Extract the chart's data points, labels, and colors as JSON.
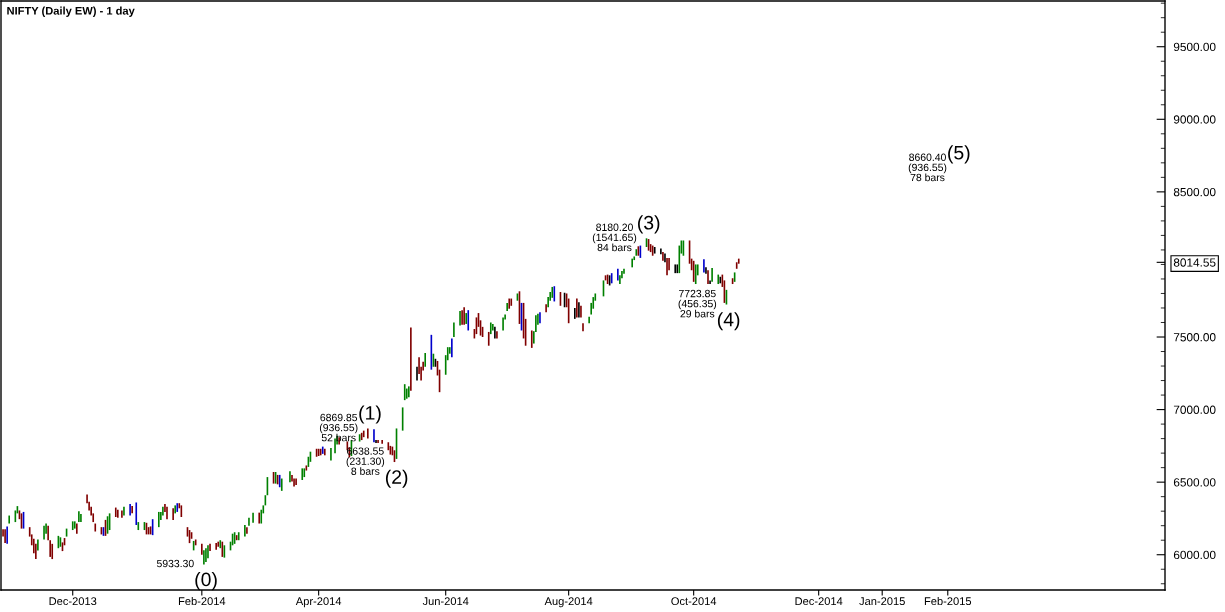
{
  "chart_data": {
    "type": "bar",
    "title": "NIFTY (Daily EW) - 1 day",
    "x": [
      "2013-10-29",
      "2013-10-30",
      "2013-10-31",
      "2013-11-01",
      "2013-11-04",
      "2013-11-05",
      "2013-11-06",
      "2013-11-07",
      "2013-11-08",
      "2013-11-11",
      "2013-11-12",
      "2013-11-13",
      "2013-11-14",
      "2013-11-15",
      "2013-11-18",
      "2013-11-19",
      "2013-11-20",
      "2013-11-21",
      "2013-11-22",
      "2013-11-25",
      "2013-11-26",
      "2013-11-27",
      "2013-11-28",
      "2013-11-29",
      "2013-12-02",
      "2013-12-03",
      "2013-12-04",
      "2013-12-05",
      "2013-12-06",
      "2013-12-09",
      "2013-12-10",
      "2013-12-11",
      "2013-12-12",
      "2013-12-13",
      "2013-12-16",
      "2013-12-17",
      "2013-12-18",
      "2013-12-19",
      "2013-12-20",
      "2013-12-23",
      "2013-12-24",
      "2013-12-26",
      "2013-12-27",
      "2013-12-30",
      "2013-12-31",
      "2014-01-02",
      "2014-01-03",
      "2014-01-06",
      "2014-01-07",
      "2014-01-08",
      "2014-01-09",
      "2014-01-10",
      "2014-01-13",
      "2014-01-14",
      "2014-01-15",
      "2014-01-16",
      "2014-01-17",
      "2014-01-20",
      "2014-01-21",
      "2014-01-22",
      "2014-01-23",
      "2014-01-24",
      "2014-01-27",
      "2014-01-28",
      "2014-01-29",
      "2014-01-30",
      "2014-01-31",
      "2014-02-03",
      "2014-02-04",
      "2014-02-05",
      "2014-02-06",
      "2014-02-07",
      "2014-02-10",
      "2014-02-11",
      "2014-02-12",
      "2014-02-13",
      "2014-02-14",
      "2014-02-17",
      "2014-02-18",
      "2014-02-19",
      "2014-02-20",
      "2014-02-21",
      "2014-02-24",
      "2014-02-25",
      "2014-02-26",
      "2014-02-28",
      "2014-03-03",
      "2014-03-04",
      "2014-03-05",
      "2014-03-06",
      "2014-03-07",
      "2014-03-10",
      "2014-03-11",
      "2014-03-12",
      "2014-03-13",
      "2014-03-14",
      "2014-03-18",
      "2014-03-19",
      "2014-03-20",
      "2014-03-21",
      "2014-03-24",
      "2014-03-25",
      "2014-03-26",
      "2014-03-27",
      "2014-03-28",
      "2014-03-31",
      "2014-04-01",
      "2014-04-02",
      "2014-04-03",
      "2014-04-04",
      "2014-04-07",
      "2014-04-09",
      "2014-04-10",
      "2014-04-11",
      "2014-04-15",
      "2014-04-16",
      "2014-04-17",
      "2014-04-21",
      "2014-04-22",
      "2014-04-23",
      "2014-04-25",
      "2014-04-28",
      "2014-04-29",
      "2014-04-30",
      "2014-05-02",
      "2014-05-05",
      "2014-05-06",
      "2014-05-07",
      "2014-05-08",
      "2014-05-09",
      "2014-05-12",
      "2014-05-13",
      "2014-05-14",
      "2014-05-15",
      "2014-05-16",
      "2014-05-19",
      "2014-05-20",
      "2014-05-21",
      "2014-05-22",
      "2014-05-23",
      "2014-05-26",
      "2014-05-27",
      "2014-05-28",
      "2014-05-29",
      "2014-05-30",
      "2014-06-02",
      "2014-06-03",
      "2014-06-04",
      "2014-06-05",
      "2014-06-06",
      "2014-06-09",
      "2014-06-10",
      "2014-06-11",
      "2014-06-12",
      "2014-06-13",
      "2014-06-16",
      "2014-06-17",
      "2014-06-18",
      "2014-06-19",
      "2014-06-20",
      "2014-06-23",
      "2014-06-24",
      "2014-06-25",
      "2014-06-26",
      "2014-06-27",
      "2014-06-30",
      "2014-07-01",
      "2014-07-02",
      "2014-07-03",
      "2014-07-04",
      "2014-07-07",
      "2014-07-08",
      "2014-07-09",
      "2014-07-10",
      "2014-07-11",
      "2014-07-14",
      "2014-07-15",
      "2014-07-16",
      "2014-07-17",
      "2014-07-18",
      "2014-07-21",
      "2014-07-22",
      "2014-07-23",
      "2014-07-24",
      "2014-07-25",
      "2014-07-28",
      "2014-07-30",
      "2014-07-31",
      "2014-08-01",
      "2014-08-04",
      "2014-08-05",
      "2014-08-06",
      "2014-08-07",
      "2014-08-08",
      "2014-08-11",
      "2014-08-12",
      "2014-08-13",
      "2014-08-14",
      "2014-08-18",
      "2014-08-19",
      "2014-08-20",
      "2014-08-21",
      "2014-08-22",
      "2014-08-25",
      "2014-08-26",
      "2014-08-27",
      "2014-08-28",
      "2014-09-01",
      "2014-09-02",
      "2014-09-03",
      "2014-09-04",
      "2014-09-05",
      "2014-09-08",
      "2014-09-09",
      "2014-09-10",
      "2014-09-11",
      "2014-09-12",
      "2014-09-15",
      "2014-09-16",
      "2014-09-17",
      "2014-09-18",
      "2014-09-19",
      "2014-09-22",
      "2014-09-23",
      "2014-09-24",
      "2014-09-25",
      "2014-09-26",
      "2014-09-29",
      "2014-09-30",
      "2014-10-01",
      "2014-10-02",
      "2014-10-03",
      "2014-10-06",
      "2014-10-07",
      "2014-10-08",
      "2014-10-09",
      "2014-10-10",
      "2014-10-13",
      "2014-10-14",
      "2014-10-15",
      "2014-10-16",
      "2014-10-17",
      "2014-10-20",
      "2014-10-21",
      "2014-10-22",
      "2014-10-23"
    ],
    "base": [
      6125,
      6080,
      6075,
      6215,
      6225,
      6285,
      6245,
      6180,
      6180,
      6125,
      6065,
      6010,
      5970,
      6030,
      6105,
      6145,
      6100,
      5985,
      5970,
      6045,
      6055,
      6025,
      6065,
      6125,
      6170,
      6180,
      6145,
      6225,
      6225,
      6355,
      6305,
      6270,
      6225,
      6160,
      6140,
      6130,
      6130,
      6145,
      6170,
      6260,
      6255,
      6255,
      6270,
      6270,
      6285,
      6205,
      6170,
      6170,
      6140,
      6140,
      6140,
      6135,
      6190,
      6240,
      6270,
      6295,
      6245,
      6240,
      6285,
      6295,
      6320,
      6260,
      6125,
      6080,
      6110,
      6030,
      6065,
      6000,
      5933.3,
      5950,
      5975,
      6025,
      6035,
      6055,
      6045,
      5985,
      5980,
      6030,
      6065,
      6075,
      6100,
      6100,
      6125,
      6145,
      6200,
      6220,
      6215,
      6215,
      6285,
      6340,
      6410,
      6490,
      6490,
      6485,
      6465,
      6440,
      6500,
      6505,
      6470,
      6480,
      6515,
      6535,
      6580,
      6605,
      6640,
      6675,
      6680,
      6685,
      6695,
      6685,
      6650,
      6700,
      6760,
      6760,
      6720,
      6670,
      6680,
      6780,
      6790,
      6810,
      6800,
      6775,
      6770,
      6770,
      6765,
      6720,
      6690,
      6685,
      6638.55,
      6660,
      6855,
      7065,
      7075,
      7085,
      7130,
      7200,
      7245,
      7200,
      7270,
      7295,
      7275,
      7295,
      7295,
      7235,
      7120,
      7240,
      7340,
      7385,
      7360,
      7500,
      7580,
      7585,
      7585,
      7590,
      7545,
      7490,
      7520,
      7570,
      7510,
      7500,
      7440,
      7520,
      7545,
      7490,
      7490,
      7545,
      7620,
      7680,
      7695,
      7715,
      7750,
      7590,
      7545,
      7490,
      7440,
      7425,
      7455,
      7535,
      7585,
      7595,
      7670,
      7705,
      7750,
      7770,
      7745,
      7715,
      7705,
      7705,
      7595,
      7625,
      7635,
      7635,
      7635,
      7540,
      7595,
      7655,
      7695,
      7750,
      7780,
      7890,
      7865,
      7855,
      7870,
      7890,
      7865,
      7905,
      7935,
      7980,
      8030,
      8060,
      8060,
      8045,
      8120,
      8095,
      8085,
      8060,
      8075,
      8070,
      8025,
      8015,
      7925,
      7960,
      7940,
      7940,
      7940,
      8075,
      8060,
      8005,
      7960,
      7880,
      7865,
      7925,
      7945,
      7935,
      7865,
      7865,
      7880,
      7865,
      7870,
      7845,
      7735,
      7723.85,
      7865,
      7880,
      7970,
      8005
    ],
    "values": [
      50,
      95,
      120,
      55,
      80,
      50,
      60,
      105,
      115,
      65,
      75,
      100,
      105,
      75,
      95,
      70,
      100,
      115,
      105,
      85,
      65,
      60,
      50,
      55,
      60,
      50,
      70,
      75,
      55,
      60,
      60,
      60,
      60,
      55,
      50,
      60,
      110,
      120,
      115,
      65,
      55,
      50,
      60,
      80,
      50,
      155,
      55,
      55,
      80,
      50,
      55,
      110,
      105,
      55,
      60,
      55,
      85,
      80,
      55,
      60,
      35,
      80,
      65,
      90,
      45,
      65,
      40,
      75,
      97,
      95,
      90,
      50,
      45,
      35,
      55,
      105,
      85,
      60,
      80,
      80,
      35,
      55,
      80,
      45,
      55,
      70,
      75,
      95,
      55,
      70,
      125,
      80,
      80,
      65,
      85,
      85,
      75,
      45,
      55,
      45,
      80,
      60,
      35,
      70,
      70,
      55,
      50,
      45,
      50,
      45,
      85,
      100,
      60,
      50,
      60,
      70,
      110,
      50,
      50,
      45,
      70,
      90,
      20,
      20,
      25,
      55,
      60,
      60,
      81,
      210,
      160,
      110,
      70,
      75,
      435,
      95,
      115,
      95,
      60,
      95,
      240,
      90,
      55,
      100,
      155,
      135,
      90,
      45,
      130,
      100,
      100,
      100,
      120,
      75,
      140,
      65,
      115,
      95,
      105,
      70,
      95,
      80,
      45,
      80,
      50,
      90,
      35,
      55,
      70,
      50,
      50,
      225,
      190,
      245,
      185,
      120,
      85,
      115,
      75,
      75,
      55,
      70,
      60,
      75,
      105,
      95,
      100,
      95,
      170,
      75,
      130,
      105,
      80,
      55,
      45,
      80,
      80,
      50,
      110,
      35,
      65,
      70,
      70,
      80,
      60,
      50,
      35,
      60,
      25,
      45,
      65,
      85,
      60,
      80,
      55,
      70,
      45,
      40,
      60,
      60,
      120,
      85,
      60,
      60,
      190,
      90,
      105,
      160,
      80,
      145,
      135,
      75,
      90,
      45,
      95,
      25,
      95,
      65,
      45,
      85,
      155,
      101,
      40,
      65,
      45,
      35
    ],
    "colors": [
      "#800000",
      "#800000",
      "#0000cc",
      "#008000",
      "#008000",
      "#008000",
      "#800000",
      "#800000",
      "#0000cc",
      "#800000",
      "#800000",
      "#800000",
      "#800000",
      "#008000",
      "#008000",
      "#008000",
      "#800000",
      "#800000",
      "#800000",
      "#008000",
      "#008000",
      "#800000",
      "#800000",
      "#008000",
      "#008000",
      "#008000",
      "#800000",
      "#008000",
      "#008000",
      "#800000",
      "#800000",
      "#800000",
      "#800000",
      "#800000",
      "#800000",
      "#0000cc",
      "#800000",
      "#008000",
      "#008000",
      "#800000",
      "#800000",
      "#800000",
      "#008000",
      "#0000cc",
      "#800000",
      "#0000cc",
      "#008000",
      "#008000",
      "#800000",
      "#800000",
      "#800000",
      "#0000cc",
      "#008000",
      "#008000",
      "#008000",
      "#800000",
      "#800000",
      "#800000",
      "#008000",
      "#0000cc",
      "#800000",
      "#800000",
      "#800000",
      "#800000",
      "#800000",
      "#008000",
      "#800000",
      "#800000",
      "#008000",
      "#008000",
      "#008000",
      "#800000",
      "#800000",
      "#800000",
      "#008000",
      "#800000",
      "#008000",
      "#008000",
      "#008000",
      "#008000",
      "#800000",
      "#008000",
      "#008000",
      "#800000",
      "#008000",
      "#008000",
      "#800000",
      "#008000",
      "#008000",
      "#008000",
      "#008000",
      "#800000",
      "#008000",
      "#800000",
      "#0000cc",
      "#008000",
      "#008000",
      "#800000",
      "#800000",
      "#800000",
      "#008000",
      "#008000",
      "#800000",
      "#008000",
      "#008000",
      "#800000",
      "#800000",
      "#800000",
      "#0000cc",
      "#800000",
      "#008000",
      "#008000",
      "#008000",
      "#800000",
      "#800000",
      "#800000",
      "#008000",
      "#008000",
      "#800000",
      "#800000",
      "#800000",
      "#0000cc",
      "#000000",
      "#800000",
      "#800000",
      "#800000",
      "#800000",
      "#800000",
      "#800000",
      "#008000",
      "#008000",
      "#008000",
      "#008000",
      "#008000",
      "#800000",
      "#000000",
      "#800000",
      "#800000",
      "#800000",
      "#008000",
      "#0000cc",
      "#008000",
      "#000000",
      "#800000",
      "#800000",
      "#008000",
      "#008000",
      "#008000",
      "#0000cc",
      "#008000",
      "#008000",
      "#800000",
      "#800000",
      "#008000",
      "#0000cc",
      "#800000",
      "#800000",
      "#800000",
      "#800000",
      "#800000",
      "#800000",
      "#008000",
      "#008000",
      "#000000",
      "#800000",
      "#008000",
      "#008000",
      "#008000",
      "#800000",
      "#800000",
      "#008000",
      "#800000",
      "#0000cc",
      "#800000",
      "#800000",
      "#800000",
      "#008000",
      "#008000",
      "#008000",
      "#0000cc",
      "#800000",
      "#008000",
      "#008000",
      "#008000",
      "#0000cc",
      "#800000",
      "#000000",
      "#800000",
      "#800000",
      "#000000",
      "#800000",
      "#000000",
      "#800000",
      "#800000",
      "#008000",
      "#008000",
      "#008000",
      "#008000",
      "#008000",
      "#800000",
      "#800000",
      "#000000",
      "#0000cc",
      "#0000cc",
      "#008000",
      "#008000",
      "#008000",
      "#008000",
      "#008000",
      "#008000",
      "#800000",
      "#0000cc",
      "#008000",
      "#800000",
      "#800000",
      "#800000",
      "#000000",
      "#000000",
      "#800000",
      "#000000",
      "#800000",
      "#800000",
      "#000000",
      "#000000",
      "#008000",
      "#008000",
      "#008000",
      "#800000",
      "#800000",
      "#800000",
      "#008000",
      "#008000",
      "#0000cc",
      "#000000",
      "#800000",
      "#000000",
      "#008000",
      "#008000",
      "#000000",
      "#800000",
      "#800000",
      "#008000",
      "#800000",
      "#008000",
      "#800000",
      "#800000"
    ],
    "xlim": [
      "2013-10-28",
      "2015-05-19"
    ],
    "xticks": [
      {
        "value": "2013-12-02",
        "label": "Dec-2013"
      },
      {
        "value": "2014-02-03",
        "label": "Feb-2014"
      },
      {
        "value": "2014-04-01",
        "label": "Apr-2014"
      },
      {
        "value": "2014-06-02",
        "label": "Jun-2014"
      },
      {
        "value": "2014-08-01",
        "label": "Aug-2014"
      },
      {
        "value": "2014-10-01",
        "label": "Oct-2014"
      },
      {
        "value": "2014-12-01",
        "label": "Dec-2014"
      },
      {
        "value": "2015-01-01",
        "label": "Jan-2015"
      },
      {
        "value": "2015-02-02",
        "label": "Feb-2015"
      }
    ],
    "ylim": [
      5757,
      9815
    ],
    "yticks": [
      {
        "value": 6000,
        "label": "6000.00"
      },
      {
        "value": 6500,
        "label": "6500.00"
      },
      {
        "value": 7000,
        "label": "7000.00"
      },
      {
        "value": 7500,
        "label": "7500.00"
      },
      {
        "value": 8014.55,
        "label": "8014.55"
      },
      {
        "value": 8500,
        "label": "8500.00"
      },
      {
        "value": 9000,
        "label": "9000.00"
      },
      {
        "value": 9500,
        "label": "9500.00"
      }
    ],
    "grid": false,
    "annotations": [
      {
        "text": "5933.30",
        "x": "2014-02-04",
        "y": 5933.3
      },
      {
        "text": "(0)",
        "x": "2014-02-04",
        "y": 5933.3
      },
      {
        "text": "6869.85\n(936.55)\n52 bars",
        "x": "2014-04-25",
        "y": 6869.85
      },
      {
        "text": "(1)",
        "x": "2014-04-25",
        "y": 6869.85
      },
      {
        "text": "6638.55\n(231.30)\n8 bars",
        "x": "2014-05-08",
        "y": 6638.55
      },
      {
        "text": "(2)",
        "x": "2014-05-08",
        "y": 6638.55
      },
      {
        "text": "8180.20\n(1541.65)\n84 bars",
        "x": "2014-09-08",
        "y": 8180.2
      },
      {
        "text": "(3)",
        "x": "2014-09-08",
        "y": 8180.2
      },
      {
        "text": "7723.85\n(456.35)\n29 bars",
        "x": "2014-10-17",
        "y": 7723.85
      },
      {
        "text": "(4)",
        "x": "2014-10-17",
        "y": 7723.85
      },
      "8660.40\n(936.55)\n78 bars",
      "(5)"
    ]
  }
}
